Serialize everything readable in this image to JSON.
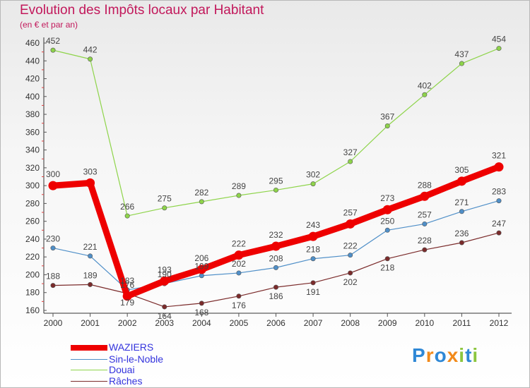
{
  "chart_data": {
    "type": "line",
    "title": "Evolution des Impôts locaux par Habitant",
    "subtitle": "(en € et par an)",
    "x": [
      "2000",
      "2001",
      "2002",
      "2003",
      "2004",
      "2005",
      "2006",
      "2007",
      "2008",
      "2009",
      "2010",
      "2011",
      "2012"
    ],
    "ylim": [
      160,
      460
    ],
    "yticks": [
      160,
      180,
      200,
      220,
      240,
      260,
      280,
      300,
      320,
      340,
      360,
      380,
      400,
      420,
      440,
      460
    ],
    "series": [
      {
        "name": "WAZIERS",
        "color": "#ee0000",
        "values": [
          300,
          303,
          176,
          193,
          206,
          222,
          232,
          243,
          257,
          273,
          288,
          305,
          321
        ]
      },
      {
        "name": "Sin-le-Noble",
        "color": "#4f8fc8",
        "values": [
          230,
          221,
          183,
          190,
          199,
          202,
          208,
          218,
          222,
          250,
          257,
          271,
          283
        ]
      },
      {
        "name": "Douai",
        "color": "#8ed44a",
        "values": [
          452,
          442,
          266,
          275,
          282,
          289,
          295,
          302,
          327,
          367,
          402,
          437,
          454
        ]
      },
      {
        "name": "Râches",
        "color": "#7b2b2b",
        "values": [
          188,
          189,
          179,
          164,
          168,
          176,
          186,
          191,
          202,
          218,
          228,
          236,
          247
        ]
      }
    ],
    "legend_position": "bottom-left",
    "grid": false
  },
  "legend_colors": {
    "WAZIERS": "#3333dd",
    "Sin-le-Noble": "#3333dd",
    "Douai": "#3333dd",
    "Râches": "#3333dd"
  },
  "logo": {
    "text": "Proxiti",
    "letters": [
      "P",
      "r",
      "o",
      "x",
      "i",
      "t",
      "i"
    ]
  }
}
